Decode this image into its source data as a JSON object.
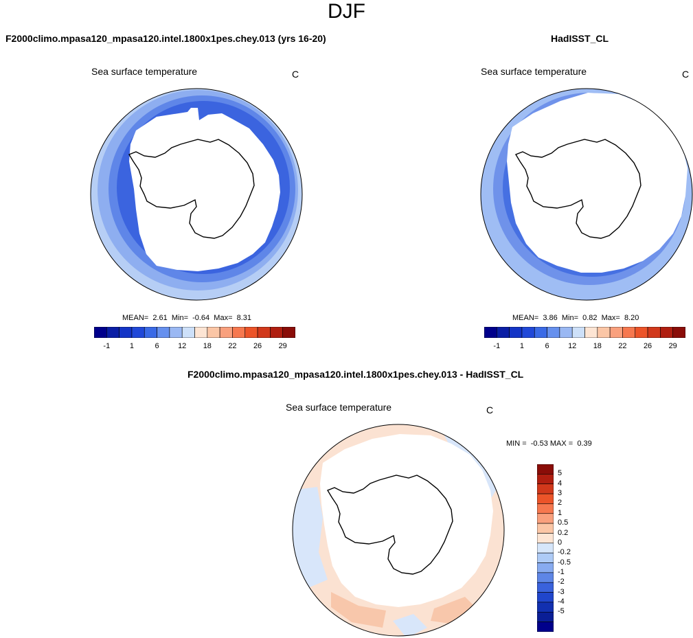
{
  "figure_title": "DJF",
  "panels": [
    {
      "title": "F2000climo.mpasa120_mpasa120.intel.1800x1pes.chey.013 (yrs 16-20)",
      "variable": "Sea surface temperature",
      "units": "C",
      "stats": "MEAN=  2.61  Min=  -0.64  Max=  8.31"
    },
    {
      "title": "HadISST_CL",
      "variable": "Sea surface temperature",
      "units": "C",
      "stats": "MEAN=  3.86  Min=  0.82  Max=  8.20"
    },
    {
      "title": "F2000climo.mpasa120_mpasa120.intel.1800x1pes.chey.013 - HadISST_CL",
      "variable": "Sea surface temperature",
      "units": "C",
      "stats": "MIN =  -0.53 MAX =  0.39"
    }
  ],
  "abs_colorbar": {
    "colors": [
      "#00008b",
      "#0a1ea5",
      "#1334c6",
      "#2048d8",
      "#3a6ae6",
      "#6690ee",
      "#9ab8f3",
      "#cde0f9",
      "#fde5d4",
      "#fbc6a6",
      "#f9a07d",
      "#f6784f",
      "#ec5429",
      "#d1381b",
      "#b01e10",
      "#8a0d08"
    ],
    "tick_labels": [
      "-1",
      "1",
      "6",
      "12",
      "18",
      "22",
      "26",
      "29"
    ]
  },
  "diff_colorbar": {
    "colors": [
      "#8a0d08",
      "#b01e10",
      "#d1381b",
      "#ec5429",
      "#f6784f",
      "#f9a07d",
      "#fbc6a6",
      "#fde5d4",
      "#d6e6fa",
      "#aecbf6",
      "#88abf0",
      "#5e86e6",
      "#3a62dc",
      "#2046cc",
      "#1230b0",
      "#0a1e96",
      "#00008b"
    ],
    "tick_labels": [
      "5",
      "4",
      "3",
      "2",
      "1",
      "0.5",
      "0.2",
      "0",
      "-0.2",
      "-0.5",
      "-1",
      "-2",
      "-3",
      "-4",
      "-5"
    ]
  }
}
